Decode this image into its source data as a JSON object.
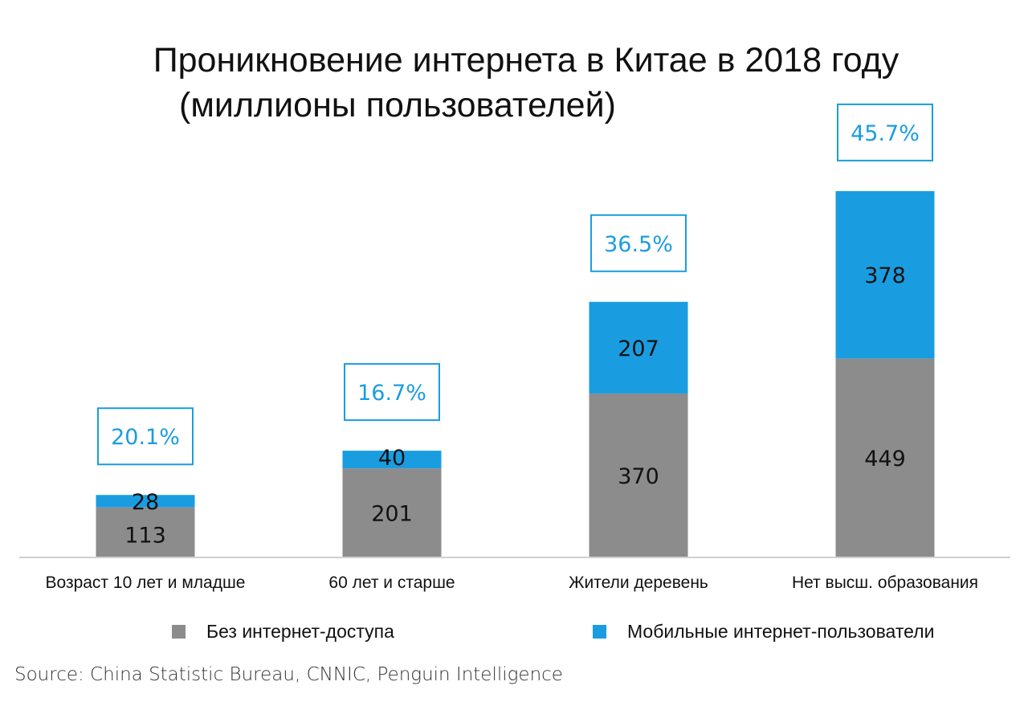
{
  "chart_data": {
    "type": "bar",
    "stacked": true,
    "title_line1": "Проникновение интернета в Китае в 2018 году",
    "title_line2": "(миллионы пользователей)",
    "categories": [
      "Возраст 10 лет и младше",
      "60 лет и старше",
      "Жители деревень",
      "Нет высш. образования"
    ],
    "series": [
      {
        "name": "Без интернет-доступа",
        "color": "#8c8c8c",
        "values": [
          113,
          201,
          370,
          449
        ]
      },
      {
        "name": "Мобильные интернет-пользователи",
        "color": "#1a9de0",
        "values": [
          28,
          40,
          207,
          378
        ]
      }
    ],
    "value_labels_bottom": [
      "113",
      "201",
      "370",
      "449"
    ],
    "value_labels_top": [
      "28",
      "40",
      "207",
      "378"
    ],
    "percent_labels": [
      "20.1%",
      "16.7%",
      "36.5%",
      "45.7%"
    ],
    "ylim": [
      0,
      880
    ],
    "grid": false,
    "legend_position": "bottom"
  },
  "source": "Source: China Statistic Bureau, CNNIC, Penguin Intelligence"
}
